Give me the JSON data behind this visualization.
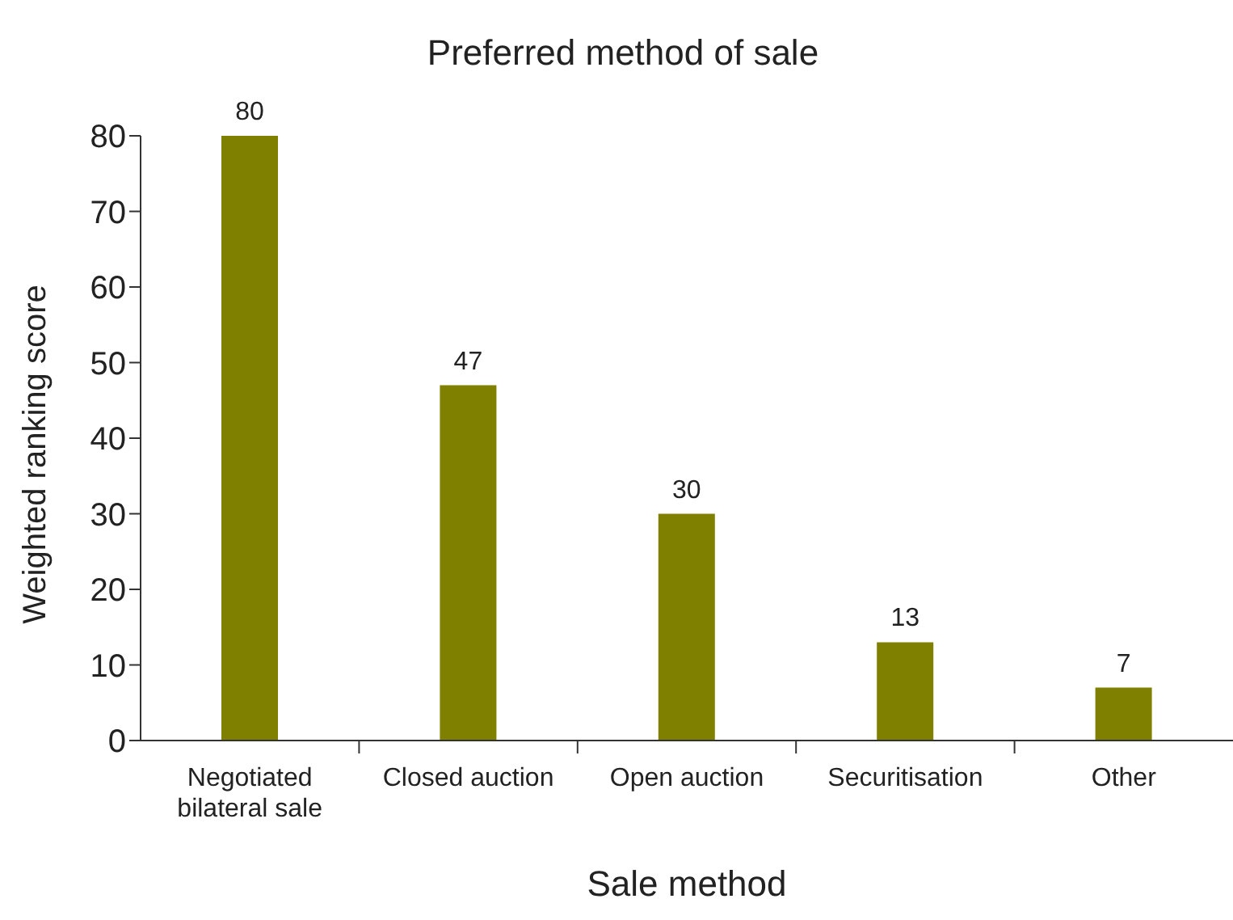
{
  "chart_data": {
    "type": "bar",
    "title": "Preferred method of sale",
    "xlabel": "Sale method",
    "ylabel": "Weighted ranking score",
    "categories": [
      "Negotiated bilateral sale",
      "Closed auction",
      "Open auction",
      "Securitisation",
      "Other"
    ],
    "values": [
      80,
      47,
      30,
      13,
      7
    ],
    "color": "#808000",
    "ylim": [
      0,
      80
    ],
    "yticks": [
      0,
      10,
      20,
      30,
      40,
      50,
      60,
      70,
      80
    ],
    "grid": false,
    "data_labels": true
  }
}
